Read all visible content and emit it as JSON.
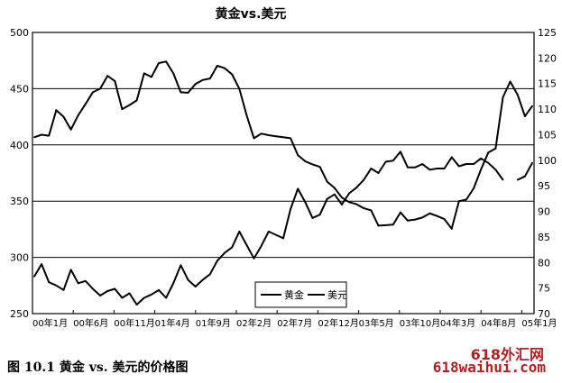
{
  "chart_data": {
    "type": "line",
    "title": "黄金vs.美元",
    "x_labels": [
      "00年1月",
      "00年6月",
      "00年11月",
      "01年4月",
      "01年9月",
      "02年2月",
      "02年7月",
      "02年12月",
      "03年5月",
      "03年10月",
      "04年3月",
      "04年8月",
      "05年1月"
    ],
    "yleft_ticks": [
      "500",
      "450",
      "400",
      "350",
      "300",
      "250"
    ],
    "yright_ticks": [
      "125",
      "120",
      "115",
      "110",
      "105",
      "100",
      "95",
      "90",
      "85",
      "80",
      "75",
      "70"
    ],
    "yleft_range": [
      250,
      500
    ],
    "yright_range": [
      70,
      125
    ],
    "grid": "horizontal",
    "legend": {
      "position": "center-right",
      "items": [
        "黄金",
        "美元"
      ]
    },
    "series": [
      {
        "name": "黄金",
        "axis": "left",
        "x": [
          0,
          1,
          2,
          3,
          4,
          5,
          6,
          7,
          8,
          9,
          10,
          11,
          12,
          13,
          14,
          15,
          16,
          17,
          18,
          19,
          20,
          21,
          22,
          23,
          24,
          25,
          26,
          27,
          28,
          29,
          30,
          31,
          32,
          33,
          34,
          35,
          36,
          37,
          38,
          39,
          40,
          41,
          42,
          43,
          44,
          45,
          46,
          47,
          48,
          49,
          50,
          51,
          52,
          53,
          54,
          55,
          56,
          57,
          58,
          59,
          60,
          61,
          62,
          63,
          64,
          65,
          66,
          67,
          68
        ],
        "values": [
          283,
          294,
          278,
          275,
          271,
          289,
          277,
          279,
          272,
          266,
          270,
          272,
          264,
          268,
          258,
          264,
          267,
          271,
          264,
          277,
          293,
          280,
          274,
          280,
          285,
          297,
          304,
          309,
          323,
          311,
          299,
          310,
          323,
          320,
          317,
          343,
          361,
          349,
          335,
          338,
          352,
          356,
          347,
          357,
          362,
          369,
          379,
          375,
          385,
          386,
          394,
          380,
          380,
          383,
          378,
          379,
          379,
          389,
          381,
          383,
          383,
          388,
          384,
          378,
          369,
          null,
          369,
          372,
          384
        ]
      },
      {
        "name": "美元",
        "axis": "right",
        "x": [
          0,
          1,
          2,
          3,
          4,
          5,
          6,
          7,
          8,
          9,
          10,
          11,
          12,
          13,
          14,
          15,
          16,
          17,
          18,
          19,
          20,
          21,
          22,
          23,
          24,
          25,
          26,
          27,
          28,
          29,
          30,
          31,
          32,
          33,
          34,
          35,
          36,
          37,
          38,
          39,
          40,
          41,
          42,
          43,
          44,
          45,
          46,
          47,
          48,
          49,
          50,
          51,
          52,
          53,
          54,
          55,
          56,
          57,
          58,
          59,
          60,
          61,
          62,
          63,
          64,
          65,
          66,
          67,
          68
        ],
        "values": [
          104.5,
          105,
          104.8,
          109.8,
          108.5,
          106,
          108.8,
          111,
          113.3,
          114,
          116.5,
          115.5,
          110,
          110.8,
          111.7,
          117,
          116.3,
          119,
          119.3,
          117,
          113.3,
          113.2,
          114.9,
          115.7,
          116,
          118.5,
          118,
          116.8,
          114,
          108.8,
          104.3,
          105.2,
          104.9,
          104.7,
          104.5,
          104.3,
          101,
          99.8,
          99.2,
          98.7,
          95.8,
          94.6,
          92.7,
          91.8,
          91.4,
          90.6,
          90.2,
          87.2,
          87.3,
          87.4,
          89.8,
          88.2,
          88.4,
          88.8,
          89.6,
          89.1,
          88.5,
          86.6,
          92,
          92.3,
          94.5,
          98.2,
          101.5,
          102.3,
          112.3,
          115.4,
          112.8,
          108.6,
          110.6
        ]
      }
    ]
  },
  "caption": "图 10.1   黄金 vs. 美元的价格图",
  "watermark": {
    "line1": "618外汇网",
    "line2": "618waihui.com",
    "color": "#b41e23"
  }
}
